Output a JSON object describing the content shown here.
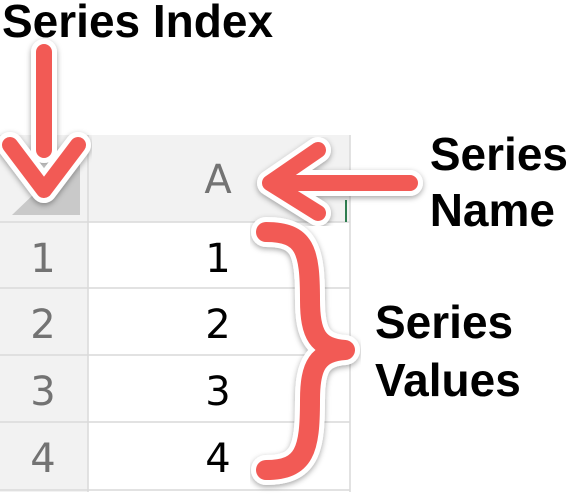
{
  "annotations": {
    "series_index": "Series Index",
    "series_name": [
      "Series",
      "Name"
    ],
    "series_values": [
      "Series",
      "Values"
    ]
  },
  "sheet": {
    "column_header": "A",
    "row_headers": [
      "1",
      "2",
      "3",
      "4"
    ],
    "values": [
      "1",
      "2",
      "3",
      "4"
    ]
  },
  "colors": {
    "accent": "#F25A55",
    "grid": "#D9D9D9",
    "header_bg": "#F2F2F2",
    "header_text": "#737373",
    "cell_text": "#000000",
    "corner_triangle": "#C9C9C9"
  }
}
